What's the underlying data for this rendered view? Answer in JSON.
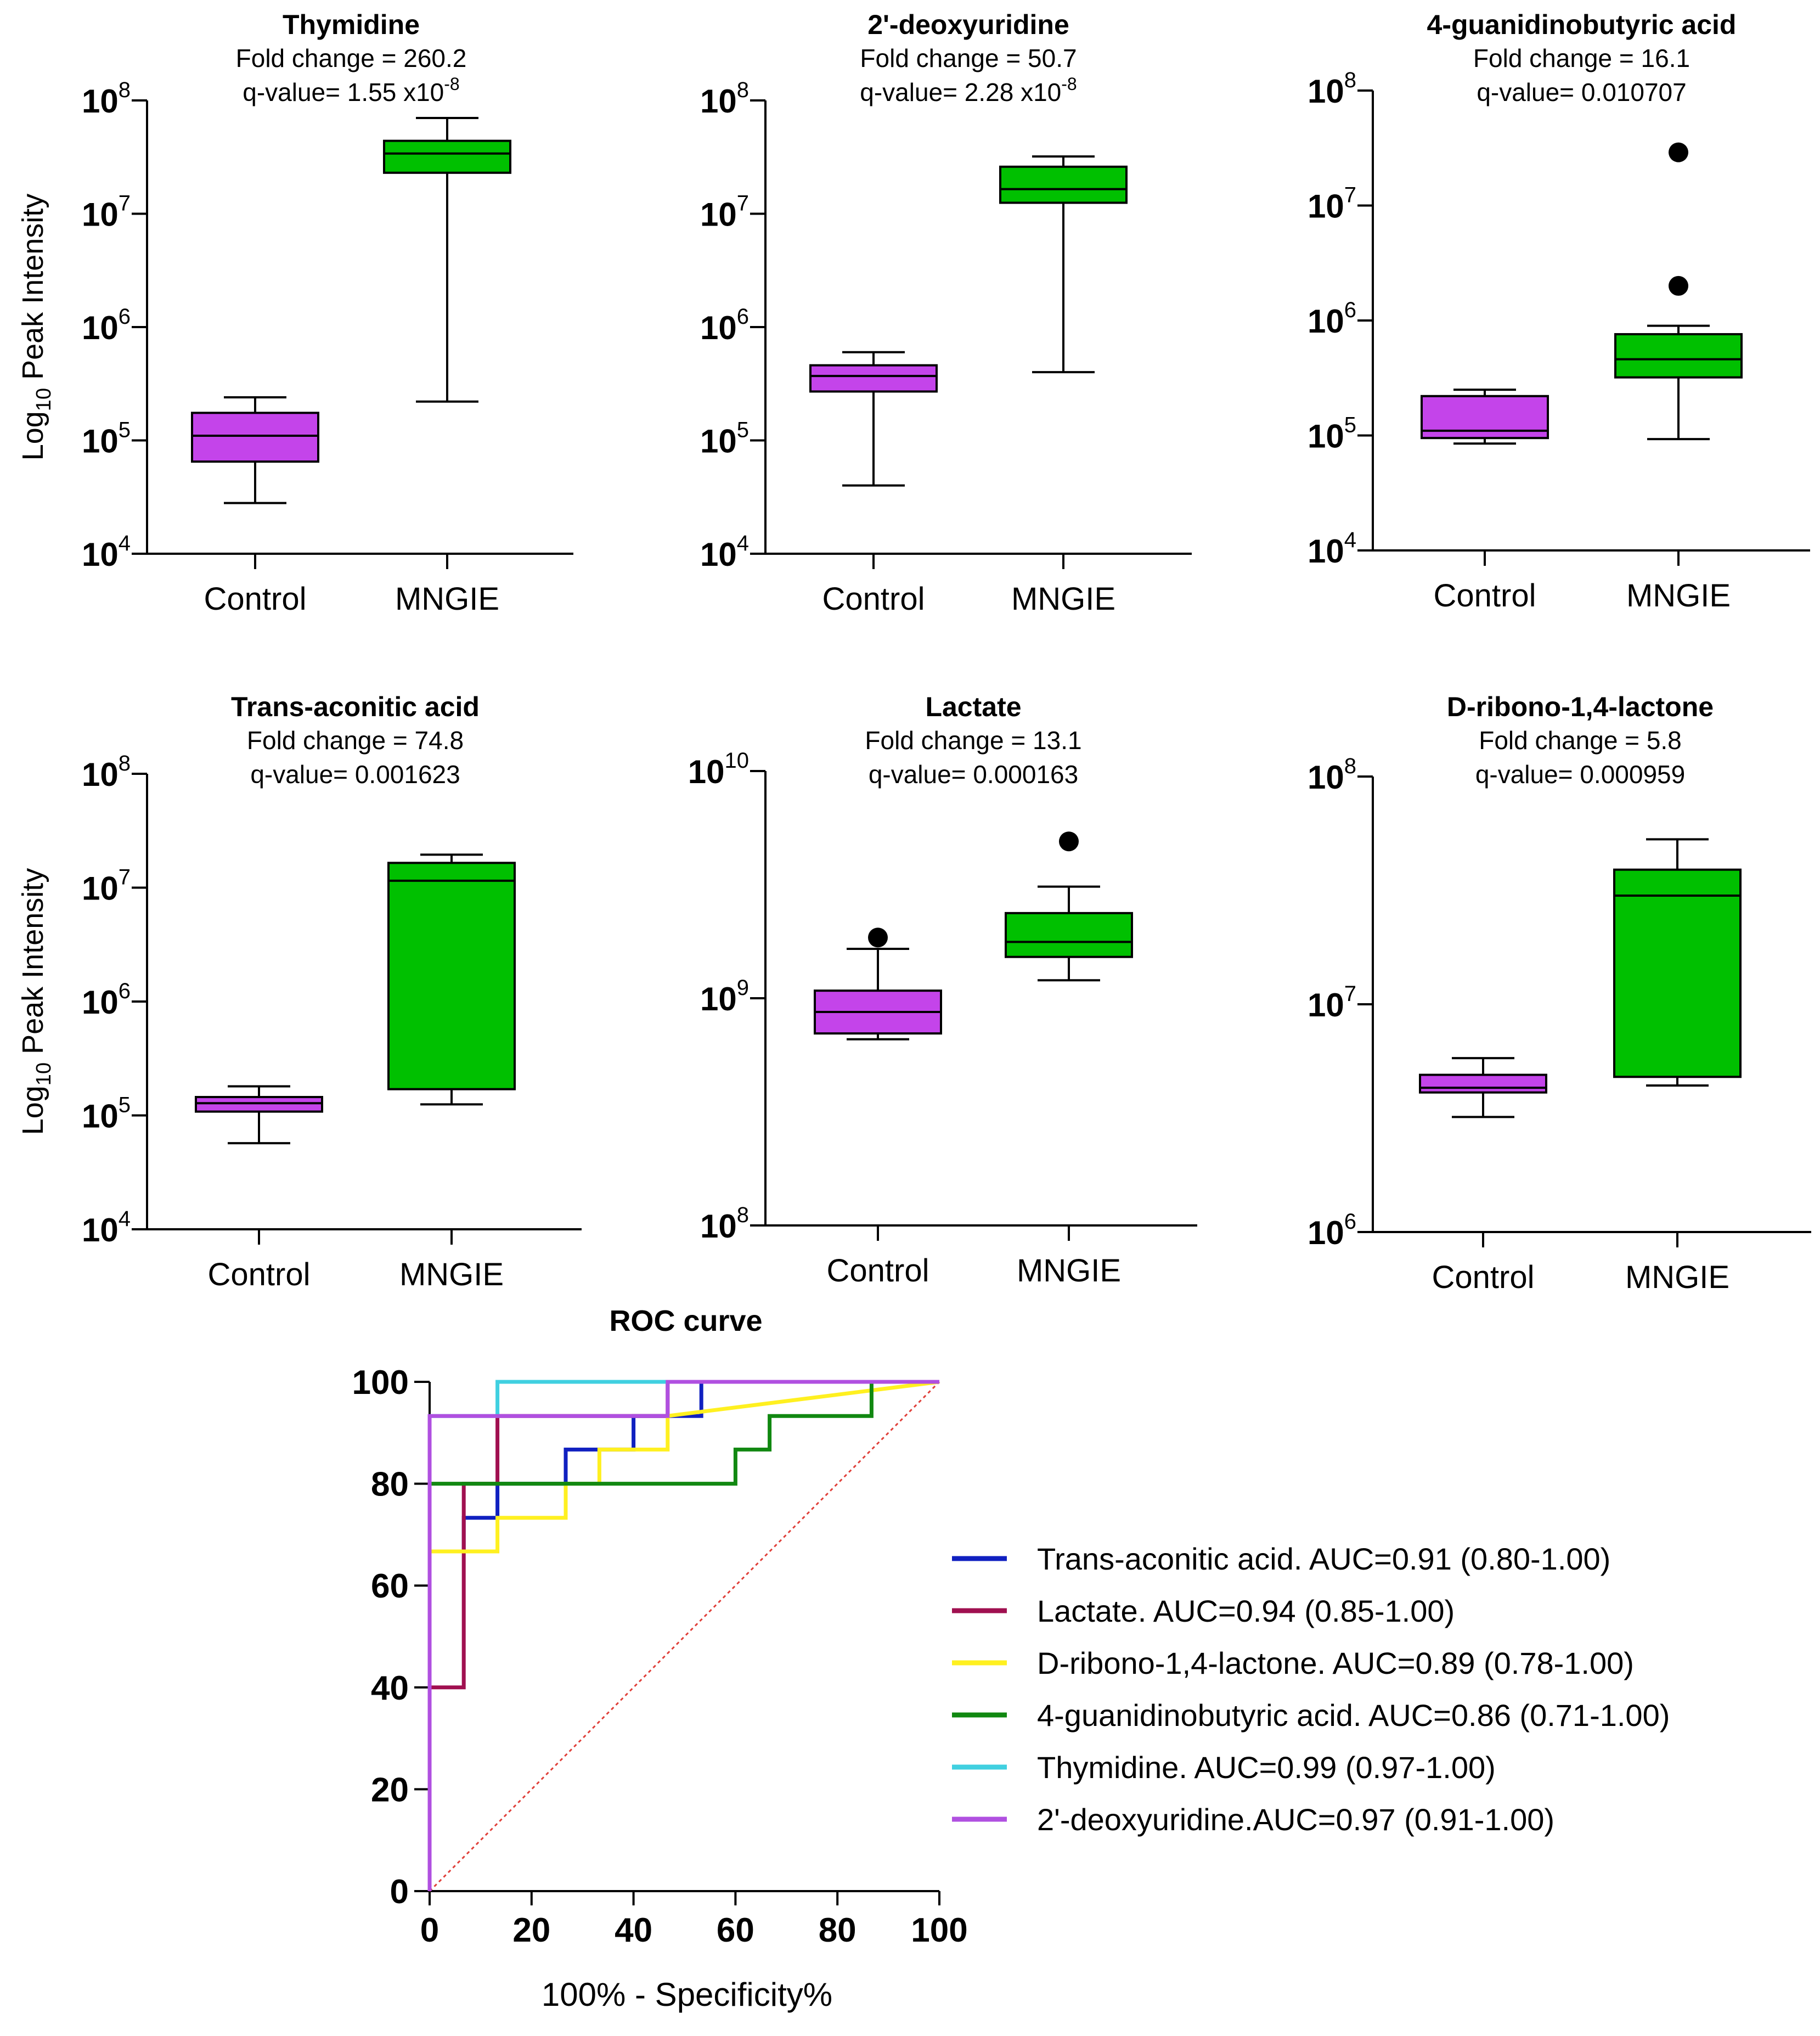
{
  "colors": {
    "control": "#C444EA",
    "mngie": "#00C000",
    "axis": "#000000",
    "diagonal": "#E0403A"
  },
  "y_axis_label": {
    "main": "Log",
    "sub": "10",
    "rest": " Peak Intensity"
  },
  "chart_data": [
    {
      "type": "box",
      "id": "thymidine",
      "title": "Thymidine",
      "subtitle1": "Fold change = 260.2",
      "subtitle2_base": "q-value= 1.55 x10",
      "subtitle2_sup": "-8",
      "yscale": "log10",
      "ylim_exp": [
        4,
        8
      ],
      "ytick_labels": [
        {
          "base": "10",
          "exp": "4"
        },
        {
          "base": "10",
          "exp": "5"
        },
        {
          "base": "10",
          "exp": "6"
        },
        {
          "base": "10",
          "exp": "7"
        },
        {
          "base": "10",
          "exp": "8"
        }
      ],
      "show_ylabel": true,
      "categories": [
        "Control",
        "MNGIE"
      ],
      "boxes": [
        {
          "group": "Control",
          "min": 28000,
          "q1": 65000,
          "median": 110000,
          "q3": 175000,
          "max": 240000,
          "outliers": []
        },
        {
          "group": "MNGIE",
          "min": 220000,
          "q1": 23000000,
          "median": 34000000,
          "q3": 44000000,
          "max": 70000000,
          "outliers": []
        }
      ]
    },
    {
      "type": "box",
      "id": "deoxyuridine",
      "title": "2'-deoxyuridine",
      "subtitle1": "Fold change = 50.7",
      "subtitle2_base": "q-value= 2.28 x10",
      "subtitle2_sup": "-8",
      "yscale": "log10",
      "ylim_exp": [
        4,
        8
      ],
      "ytick_labels": [
        {
          "base": "10",
          "exp": "4"
        },
        {
          "base": "10",
          "exp": "5"
        },
        {
          "base": "10",
          "exp": "6"
        },
        {
          "base": "10",
          "exp": "7"
        },
        {
          "base": "10",
          "exp": "8"
        }
      ],
      "show_ylabel": false,
      "categories": [
        "Control",
        "MNGIE"
      ],
      "boxes": [
        {
          "group": "Control",
          "min": 40000,
          "q1": 270000,
          "median": 370000,
          "q3": 460000,
          "max": 600000,
          "outliers": []
        },
        {
          "group": "MNGIE",
          "min": 400000,
          "q1": 12500000,
          "median": 16500000,
          "q3": 26000000,
          "max": 32000000,
          "outliers": []
        }
      ]
    },
    {
      "type": "box",
      "id": "guanidinobutyric",
      "title": "4-guanidinobutyric acid",
      "subtitle1": "Fold change = 16.1",
      "subtitle2_base": "q-value= 0.010707",
      "subtitle2_sup": "",
      "yscale": "log10",
      "ylim_exp": [
        4,
        8
      ],
      "ytick_labels": [
        {
          "base": "10",
          "exp": "4"
        },
        {
          "base": "10",
          "exp": "5"
        },
        {
          "base": "10",
          "exp": "6"
        },
        {
          "base": "10",
          "exp": "7"
        },
        {
          "base": "10",
          "exp": "8"
        }
      ],
      "show_ylabel": false,
      "categories": [
        "Control",
        "MNGIE"
      ],
      "boxes": [
        {
          "group": "Control",
          "min": 85000,
          "q1": 95000,
          "median": 110000,
          "q3": 220000,
          "max": 250000,
          "outliers": []
        },
        {
          "group": "MNGIE",
          "min": 93000,
          "q1": 320000,
          "median": 460000,
          "q3": 760000,
          "max": 900000,
          "outliers": [
            2000000,
            29000000
          ]
        }
      ]
    },
    {
      "type": "box",
      "id": "transaconitic",
      "title": "Trans-aconitic acid",
      "subtitle1": "Fold change = 74.8",
      "subtitle2_base": "q-value= 0.001623",
      "subtitle2_sup": "",
      "yscale": "log10",
      "ylim_exp": [
        4,
        8
      ],
      "ytick_labels": [
        {
          "base": "10",
          "exp": "4"
        },
        {
          "base": "10",
          "exp": "5"
        },
        {
          "base": "10",
          "exp": "6"
        },
        {
          "base": "10",
          "exp": "7"
        },
        {
          "base": "10",
          "exp": "8"
        }
      ],
      "show_ylabel": true,
      "categories": [
        "Control",
        "MNGIE"
      ],
      "boxes": [
        {
          "group": "Control",
          "min": 57000,
          "q1": 108000,
          "median": 128000,
          "q3": 145000,
          "max": 180000,
          "outliers": []
        },
        {
          "group": "MNGIE",
          "min": 125000,
          "q1": 170000,
          "median": 11500000,
          "q3": 16500000,
          "max": 19500000,
          "outliers": []
        }
      ]
    },
    {
      "type": "box",
      "id": "lactate",
      "title": "Lactate",
      "subtitle1": "Fold change = 13.1",
      "subtitle2_base": "q-value= 0.000163",
      "subtitle2_sup": "",
      "yscale": "log10",
      "ylim_exp": [
        8,
        10
      ],
      "ytick_labels": [
        {
          "base": "10",
          "exp": "8"
        },
        {
          "base": "10",
          "exp": "9"
        },
        {
          "base": "10",
          "exp": "10"
        }
      ],
      "show_ylabel": false,
      "categories": [
        "Control",
        "MNGIE"
      ],
      "boxes": [
        {
          "group": "Control",
          "min": 660000000,
          "q1": 700000000,
          "median": 870000000,
          "q3": 1080000000,
          "max": 1650000000,
          "outliers": [
            1850000000
          ]
        },
        {
          "group": "MNGIE",
          "min": 1200000000,
          "q1": 1520000000,
          "median": 1770000000,
          "q3": 2370000000,
          "max": 3100000000,
          "outliers": [
            4900000000
          ]
        }
      ]
    },
    {
      "type": "box",
      "id": "ribonolactone",
      "title": "D-ribono-1,4-lactone",
      "subtitle1": "Fold change = 5.8",
      "subtitle2_base": "q-value= 0.000959",
      "subtitle2_sup": "",
      "yscale": "log10",
      "ylim_exp": [
        6,
        8
      ],
      "ytick_labels": [
        {
          "base": "10",
          "exp": "6"
        },
        {
          "base": "10",
          "exp": "7"
        },
        {
          "base": "10",
          "exp": "8"
        }
      ],
      "show_ylabel": false,
      "categories": [
        "Control",
        "MNGIE"
      ],
      "boxes": [
        {
          "group": "Control",
          "min": 3200000,
          "q1": 4100000,
          "median": 4300000,
          "q3": 4900000,
          "max": 5800000,
          "outliers": []
        },
        {
          "group": "MNGIE",
          "min": 4400000,
          "q1": 4800000,
          "median": 30000000,
          "q3": 39000000,
          "max": 53000000,
          "outliers": []
        }
      ]
    },
    {
      "type": "line",
      "id": "roc",
      "title": "ROC curve",
      "xlabel": "100% - Specificity%",
      "ylabel": "",
      "xlim": [
        0,
        100
      ],
      "ylim": [
        0,
        100
      ],
      "xticks": [
        "0",
        "20",
        "40",
        "60",
        "80",
        "100"
      ],
      "yticks": [
        "0",
        "20",
        "40",
        "60",
        "80",
        "100"
      ],
      "series": [
        {
          "name": "Trans-aconitic acid. AUC=0.91 (0.80-1.00)",
          "color": "#1020C0",
          "x": [
            0,
            0,
            6.7,
            6.7,
            13.3,
            13.3,
            26.7,
            26.7,
            40,
            40,
            53.3,
            53.3,
            100
          ],
          "y": [
            0,
            66.7,
            66.7,
            73.3,
            73.3,
            80,
            80,
            86.7,
            86.7,
            93.3,
            93.3,
            100,
            100
          ]
        },
        {
          "name": "Lactate. AUC=0.94 (0.85-1.00)",
          "color": "#A01050",
          "x": [
            0,
            0,
            6.7,
            6.7,
            13.3,
            13.3,
            46.7,
            46.7,
            100
          ],
          "y": [
            0,
            40,
            40,
            80,
            80,
            93.3,
            93.3,
            100,
            100
          ]
        },
        {
          "name": "D-ribono-1,4-lactone. AUC=0.89 (0.78-1.00)",
          "color": "#FFF020",
          "x": [
            0,
            0,
            13.3,
            13.3,
            26.7,
            26.7,
            33.3,
            33.3,
            46.7,
            46.7,
            100
          ],
          "y": [
            0,
            66.7,
            66.7,
            73.3,
            73.3,
            80,
            80,
            86.7,
            86.7,
            93.3,
            100
          ]
        },
        {
          "name": "4-guanidinobutyric acid. AUC=0.86 (0.71-1.00)",
          "color": "#118811",
          "x": [
            0,
            0,
            60,
            60,
            66.7,
            66.7,
            86.7,
            86.7,
            100
          ],
          "y": [
            0,
            80,
            80,
            86.7,
            86.7,
            93.3,
            93.3,
            100,
            100
          ]
        },
        {
          "name": "Thymidine. AUC=0.99 (0.97-1.00)",
          "color": "#40D0E0",
          "x": [
            0,
            0,
            13.3,
            13.3,
            100
          ],
          "y": [
            0,
            93.3,
            93.3,
            100,
            100
          ]
        },
        {
          "name": "2'-deoxyuridine.AUC=0.97 (0.91-1.00)",
          "color": "#B050E0",
          "x": [
            0,
            0,
            46.7,
            46.7,
            100
          ],
          "y": [
            0,
            93.3,
            93.3,
            100,
            100
          ]
        }
      ]
    }
  ]
}
